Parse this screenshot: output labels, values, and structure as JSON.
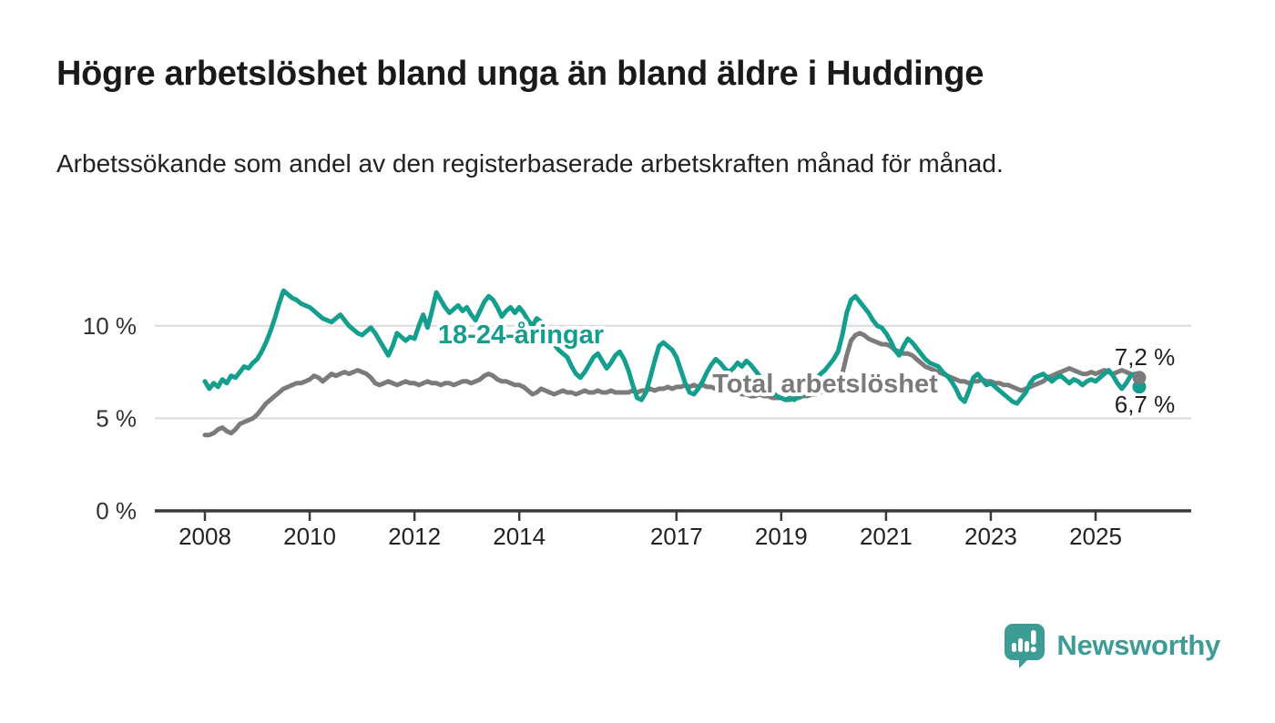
{
  "header": {
    "title": "Högre arbetslöshet bland unga än bland äldre i Huddinge",
    "subtitle": "Arbetssökande som andel av den registerbaserade arbetskraften månad för månad."
  },
  "chart_data": {
    "type": "line",
    "x_start_year": 2008,
    "x_interval": "monthly",
    "x_end_label_period": "late 2025",
    "x_ticks": [
      2008,
      2010,
      2012,
      2014,
      2017,
      2019,
      2021,
      2023,
      2025
    ],
    "y_ticks": [
      {
        "value": 0,
        "label": "0 %"
      },
      {
        "value": 5,
        "label": "5 %"
      },
      {
        "value": 10,
        "label": "10 %"
      }
    ],
    "ylim": [
      0,
      13.3
    ],
    "grid": "horizontal",
    "legend_position": "inline-labels",
    "series": [
      {
        "name": "Total arbetslöshet",
        "color": "#7b7b7b",
        "end_value": 7.2,
        "end_label": "7,2 %",
        "values": [
          4.1,
          4.1,
          4.2,
          4.4,
          4.5,
          4.3,
          4.2,
          4.4,
          4.7,
          4.8,
          4.9,
          5.0,
          5.2,
          5.5,
          5.8,
          6.0,
          6.2,
          6.4,
          6.6,
          6.7,
          6.8,
          6.9,
          6.9,
          7.0,
          7.1,
          7.3,
          7.2,
          7.0,
          7.2,
          7.4,
          7.3,
          7.4,
          7.5,
          7.4,
          7.5,
          7.6,
          7.5,
          7.4,
          7.2,
          6.9,
          6.8,
          6.9,
          7.0,
          6.9,
          6.8,
          6.9,
          7.0,
          6.9,
          6.9,
          6.8,
          6.9,
          7.0,
          6.9,
          6.9,
          6.8,
          6.9,
          6.9,
          6.8,
          6.9,
          7.0,
          7.0,
          6.9,
          7.0,
          7.1,
          7.3,
          7.4,
          7.3,
          7.1,
          7.0,
          7.0,
          6.9,
          6.8,
          6.8,
          6.7,
          6.5,
          6.3,
          6.4,
          6.6,
          6.5,
          6.4,
          6.3,
          6.4,
          6.5,
          6.4,
          6.4,
          6.3,
          6.4,
          6.5,
          6.4,
          6.4,
          6.5,
          6.4,
          6.4,
          6.5,
          6.4,
          6.4,
          6.4,
          6.4,
          6.5,
          6.4,
          6.5,
          6.5,
          6.6,
          6.5,
          6.6,
          6.6,
          6.7,
          6.6,
          6.7,
          6.7,
          6.8,
          6.7,
          6.8,
          6.7,
          6.8,
          6.7,
          6.7,
          6.6,
          6.6,
          6.5,
          6.5,
          6.4,
          6.4,
          6.3,
          6.3,
          6.2,
          6.2,
          6.3,
          6.2,
          6.2,
          6.1,
          6.1,
          6.1,
          6.0,
          6.0,
          6.1,
          6.1,
          6.2,
          6.2,
          6.3,
          6.3,
          6.4,
          6.5,
          6.6,
          6.7,
          6.9,
          7.4,
          8.4,
          9.2,
          9.5,
          9.6,
          9.5,
          9.3,
          9.2,
          9.1,
          9.0,
          9.0,
          8.9,
          8.7,
          8.6,
          8.5,
          8.5,
          8.4,
          8.2,
          8.0,
          7.8,
          7.7,
          7.6,
          7.5,
          7.4,
          7.3,
          7.2,
          7.1,
          7.0,
          7.0,
          6.9,
          7.0,
          7.0,
          7.1,
          7.0,
          7.0,
          6.9,
          6.9,
          6.8,
          6.8,
          6.7,
          6.6,
          6.5,
          6.6,
          6.7,
          6.8,
          6.9,
          7.0,
          7.2,
          7.3,
          7.4,
          7.5,
          7.6,
          7.7,
          7.6,
          7.5,
          7.4,
          7.4,
          7.5,
          7.4,
          7.5,
          7.6,
          7.5,
          7.4,
          7.5,
          7.6,
          7.5,
          7.4,
          7.3,
          7.2
        ]
      },
      {
        "name": "18-24-åringar",
        "color": "#149e8d",
        "end_value": 6.7,
        "end_label": "6,7 %",
        "values": [
          7.0,
          6.6,
          6.9,
          6.7,
          7.1,
          6.9,
          7.3,
          7.2,
          7.5,
          7.8,
          7.7,
          8.0,
          8.2,
          8.6,
          9.1,
          9.7,
          10.4,
          11.2,
          11.9,
          11.7,
          11.5,
          11.4,
          11.2,
          11.1,
          11.0,
          10.8,
          10.6,
          10.4,
          10.3,
          10.2,
          10.4,
          10.6,
          10.3,
          10.0,
          9.8,
          9.6,
          9.5,
          9.7,
          9.9,
          9.6,
          9.2,
          8.8,
          8.4,
          8.9,
          9.6,
          9.4,
          9.2,
          9.4,
          9.3,
          10.0,
          10.6,
          9.9,
          10.8,
          11.8,
          11.4,
          11.0,
          10.7,
          10.9,
          11.1,
          10.8,
          11.0,
          10.6,
          10.3,
          10.8,
          11.3,
          11.6,
          11.4,
          11.0,
          10.5,
          10.8,
          11.0,
          10.7,
          11.0,
          10.7,
          10.3,
          10.0,
          10.4,
          10.2,
          9.8,
          9.4,
          9.0,
          8.7,
          8.5,
          8.3,
          7.8,
          7.4,
          7.2,
          7.5,
          7.9,
          8.3,
          8.5,
          8.1,
          7.7,
          8.0,
          8.4,
          8.6,
          8.2,
          7.6,
          6.8,
          6.1,
          6.0,
          6.4,
          7.2,
          8.1,
          8.9,
          9.1,
          8.9,
          8.7,
          8.3,
          7.6,
          6.9,
          6.4,
          6.3,
          6.6,
          7.0,
          7.5,
          7.9,
          8.2,
          8.0,
          7.7,
          7.5,
          7.7,
          8.0,
          7.8,
          8.1,
          7.9,
          7.6,
          7.3,
          7.0,
          6.7,
          6.4,
          6.2,
          6.1,
          6.0,
          6.1,
          6.0,
          6.2,
          6.3,
          6.5,
          6.8,
          7.1,
          7.4,
          7.6,
          7.9,
          8.2,
          8.6,
          9.5,
          10.7,
          11.4,
          11.6,
          11.3,
          11.0,
          10.7,
          10.3,
          10.0,
          9.9,
          9.6,
          9.2,
          8.7,
          8.4,
          8.9,
          9.3,
          9.1,
          8.8,
          8.5,
          8.2,
          8.0,
          7.9,
          7.8,
          7.5,
          7.3,
          7.0,
          6.6,
          6.1,
          5.9,
          6.5,
          7.2,
          7.4,
          7.1,
          6.8,
          6.9,
          6.7,
          6.5,
          6.3,
          6.1,
          5.9,
          5.8,
          6.1,
          6.4,
          6.9,
          7.2,
          7.3,
          7.4,
          7.2,
          7.0,
          7.2,
          7.3,
          7.1,
          6.9,
          7.1,
          7.0,
          6.8,
          7.0,
          7.1,
          7.0,
          7.2,
          7.4,
          7.6,
          7.3,
          6.9,
          6.6,
          6.9,
          7.3,
          7.4,
          6.7
        ]
      }
    ],
    "colors": {
      "grid": "#dcdcdc",
      "axis": "#3a3a3a",
      "axis_text": "#333333",
      "end_label_text": "#1f1f1f"
    }
  },
  "branding": {
    "logo_text": "Newsworthy",
    "logo_color": "#3e9c96"
  }
}
